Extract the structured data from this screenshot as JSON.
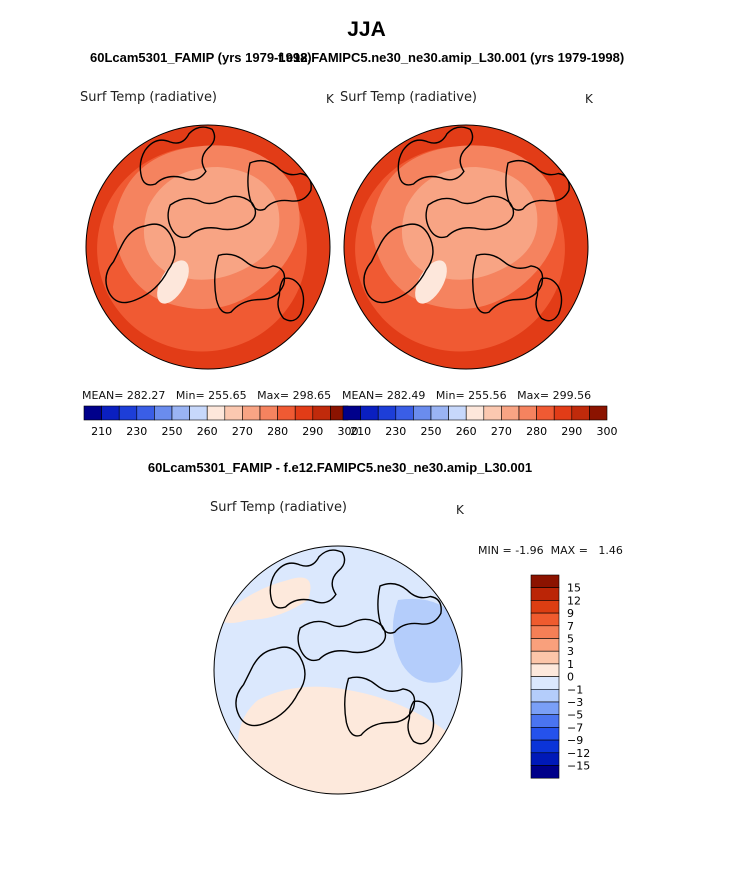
{
  "header": {
    "title": "JJA",
    "left_subtitle": "60Lcam5301_FAMIP (yrs 1979-1998)",
    "right_subtitle": "f.e12.FAMIPC5.ne30_ne30.amip_L30.001 (yrs 1979-1998)",
    "diff_title": "60Lcam5301_FAMIP - f.e12.FAMIPC5.ne30_ne30.amip_L30.001"
  },
  "colors": {
    "abs_palette": [
      "#00008b",
      "#0a1fc0",
      "#1d3ed8",
      "#3a5ee6",
      "#6a8cee",
      "#9ab4f4",
      "#c7d8fb",
      "#fde7db",
      "#fbc8b0",
      "#f8a484",
      "#f5835f",
      "#f05a33",
      "#e23c17",
      "#c02a0b",
      "#8b1300"
    ],
    "diff_palette": [
      "#000089",
      "#0019b8",
      "#0b34d8",
      "#2552ec",
      "#4a74f0",
      "#7a9ff6",
      "#b4cdfb",
      "#dbe8fd",
      "#fde9dc",
      "#fcc6a9",
      "#f9a07c",
      "#f57f56",
      "#ef5b2e",
      "#dc3e12",
      "#bb2506",
      "#8c1300"
    ]
  },
  "chart_data": [
    {
      "type": "heatmap",
      "id": "left-map",
      "title": "60Lcam5301_FAMIP (yrs 1979-1998)",
      "variable": "Surf Temp (radiative)",
      "units": "K",
      "stats": {
        "mean_label": "MEAN=",
        "mean": "282.27",
        "min_label": "Min=",
        "min": "255.65",
        "max_label": "Max=",
        "max": "298.65"
      },
      "colorbar_ticks": [
        "210",
        "230",
        "250",
        "260",
        "270",
        "280",
        "290",
        "300"
      ],
      "regions": {
        "outer_band": 290,
        "mid_band": 285,
        "inner_band": 280,
        "arctic_ocean": 272,
        "greenland_interior": 262
      }
    },
    {
      "type": "heatmap",
      "id": "right-map",
      "title": "f.e12.FAMIPC5.ne30_ne30.amip_L30.001 (yrs 1979-1998)",
      "variable": "Surf Temp (radiative)",
      "units": "K",
      "stats": {
        "mean_label": "MEAN=",
        "mean": "282.49",
        "min_label": "Min=",
        "min": "255.56",
        "max_label": "Max=",
        "max": "299.56"
      },
      "colorbar_ticks": [
        "210",
        "230",
        "250",
        "260",
        "270",
        "280",
        "290",
        "300"
      ],
      "regions": {
        "outer_band": 290,
        "mid_band": 285,
        "inner_band": 280,
        "arctic_ocean": 272,
        "greenland_interior": 262
      }
    },
    {
      "type": "heatmap",
      "id": "diff-map",
      "title": "60Lcam5301_FAMIP - f.e12.FAMIPC5.ne30_ne30.amip_L30.001",
      "variable": "Surf Temp (radiative)",
      "units": "K",
      "stats": {
        "min_label": "MIN =",
        "min": "-1.96",
        "max_label": "MAX =",
        "max": "1.46"
      },
      "colorbar_ticks": [
        "15",
        "12",
        "9",
        "7",
        "5",
        "3",
        "1",
        "0",
        "−1",
        "−3",
        "−5",
        "−7",
        "−9",
        "−12",
        "−15"
      ],
      "regions": {
        "background": -0.5,
        "north_america_patch": 0.5,
        "siberia_patch": -1.2,
        "eurasia_patch": 0.5
      }
    }
  ]
}
